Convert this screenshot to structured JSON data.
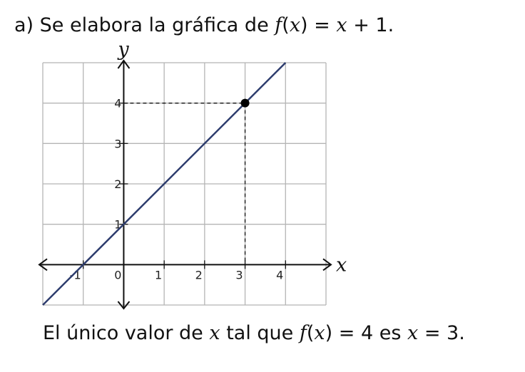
{
  "heading": [
    "a) Se elabora la gráfica de ",
    "f",
    "(",
    "x",
    ") = ",
    "x",
    " + 1."
  ],
  "chart_data": {
    "type": "line",
    "xlabel": "x",
    "ylabel": "y",
    "xlim": [
      -2,
      5
    ],
    "ylim": [
      -1,
      5
    ],
    "xticks": [
      -1,
      0,
      1,
      2,
      3,
      4
    ],
    "yticks": [
      1,
      2,
      3,
      4
    ],
    "grid": true,
    "series": [
      {
        "name": "f(x) = x + 1",
        "color": "#2e3d6e",
        "x": [
          -2,
          4
        ],
        "values": [
          -1,
          5
        ]
      },
      {
        "name": "(3, 4)",
        "color": "#000000",
        "x": [
          3
        ],
        "values": [
          4
        ]
      }
    ]
  },
  "caption": [
    "El único valor de ",
    "x",
    " tal que ",
    "f",
    "(",
    "x",
    ") = 4 es ",
    "x",
    " = 3."
  ]
}
